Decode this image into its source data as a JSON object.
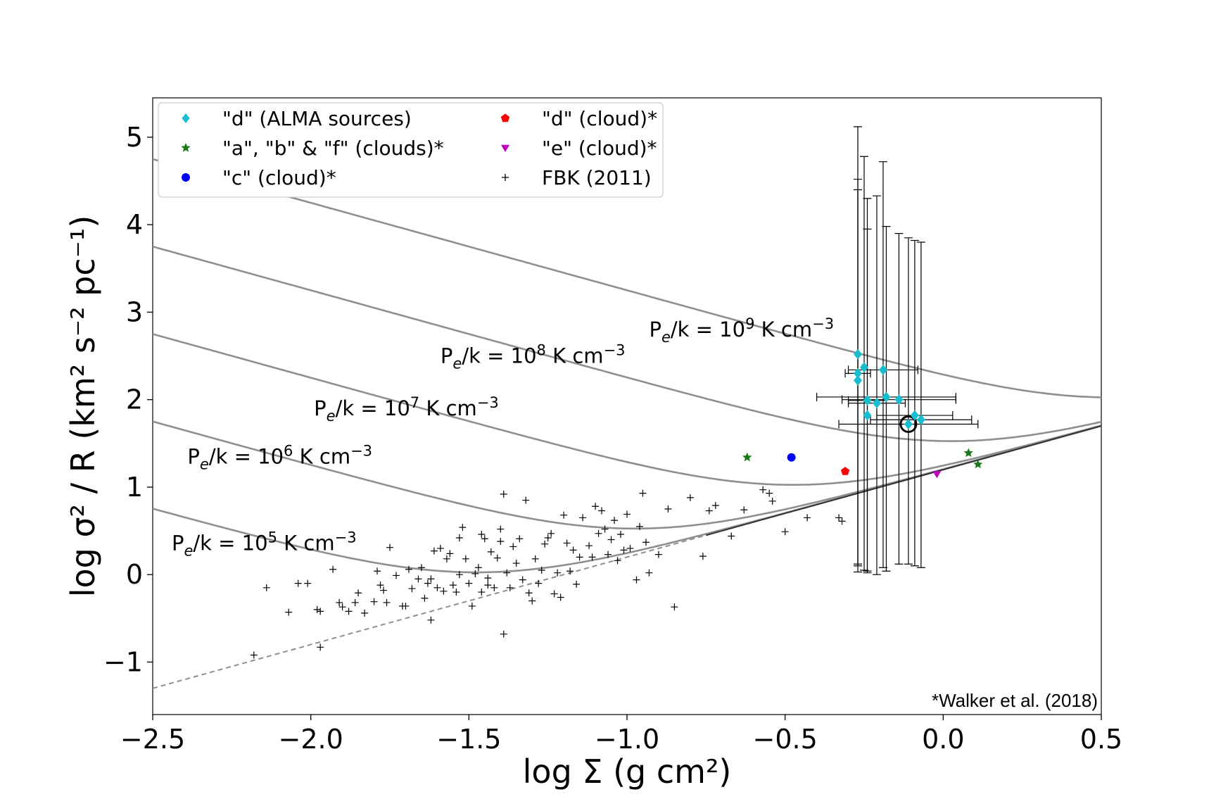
{
  "chart_data": {
    "type": "scatter",
    "xlabel": "log Σ (g cm²)",
    "ylabel": "log σ² / R (km² s⁻² pc⁻¹)",
    "xlim": [
      -2.5,
      0.5
    ],
    "ylim": [
      -1.6,
      5.45
    ],
    "xticks": [
      -2.5,
      -2.0,
      -1.5,
      -1.0,
      -0.5,
      0.0,
      0.5
    ],
    "yticks": [
      -1,
      0,
      1,
      2,
      3,
      4,
      5
    ],
    "xtick_labels": [
      "−2.5",
      "−2.0",
      "−1.5",
      "−1.0",
      "−0.5",
      "0.0",
      "0.5"
    ],
    "ytick_labels": [
      "−1",
      "0",
      "1",
      "2",
      "3",
      "4",
      "5"
    ],
    "annotation": "*Walker et al. (2018)",
    "legend": [
      {
        "label": "\"d\" (ALMA sources)",
        "marker": "diamond",
        "color": "#17becf"
      },
      {
        "label": "\"a\", \"b\" & \"f\" (clouds)*",
        "marker": "star",
        "color": "#1a7a1a"
      },
      {
        "label": "\"c\" (cloud)*",
        "marker": "circle",
        "color": "#0000ff"
      },
      {
        "label": "\"d\" (cloud)*",
        "marker": "pentagon",
        "color": "#ff0000"
      },
      {
        "label": "\"e\" (cloud)*",
        "marker": "triangle-down",
        "color": "#bf00bf"
      },
      {
        "label": "FBK (2011)",
        "marker": "plus",
        "color": "#000000"
      }
    ],
    "pressure_curves": [
      {
        "label_base": "P",
        "label_sub": "e",
        "label_mid": "/k = 10",
        "label_exp": "5",
        "label_unit": " K cm",
        "label_unit_exp": "−3",
        "log_pk": 5,
        "label_x": -2.44,
        "label_y": 0.28
      },
      {
        "label_base": "P",
        "label_sub": "e",
        "label_mid": "/k = 10",
        "label_exp": "6",
        "label_unit": " K cm",
        "label_unit_exp": "−3",
        "log_pk": 6,
        "label_x": -2.39,
        "label_y": 1.27
      },
      {
        "label_base": "P",
        "label_sub": "e",
        "label_mid": "/k = 10",
        "label_exp": "7",
        "label_unit": " K cm",
        "label_unit_exp": "−3",
        "log_pk": 7,
        "label_x": -1.99,
        "label_y": 1.82
      },
      {
        "label_base": "P",
        "label_sub": "e",
        "label_mid": "/k = 10",
        "label_exp": "8",
        "label_unit": " K cm",
        "label_unit_exp": "−3",
        "log_pk": 8,
        "label_x": -1.59,
        "label_y": 2.42
      },
      {
        "label_base": "P",
        "label_sub": "e",
        "label_mid": "/k = 10",
        "label_exp": "9",
        "label_unit": " K cm",
        "label_unit_exp": "−3",
        "log_pk": 9,
        "label_x": -0.93,
        "label_y": 2.72
      }
    ],
    "lines": {
      "gravity_line": {
        "x0": -2.5,
        "y0": -1.3,
        "x1": 0.5,
        "y1": 1.7
      },
      "gravity_line_solid_from_x": -0.75
    },
    "alma_sources": [
      {
        "x": -0.27,
        "y": 2.52,
        "xerr": 0.0,
        "ylo": 0.12,
        "yhi": 5.12
      },
      {
        "x": -0.25,
        "y": 2.37,
        "xerr": 0.0,
        "ylo": 0.05,
        "yhi": 4.78
      },
      {
        "x": -0.27,
        "y": 2.3,
        "xerr": 0.04,
        "ylo": 0.1,
        "yhi": 4.52
      },
      {
        "x": -0.27,
        "y": 2.22,
        "xerr": 0.0,
        "ylo": 0.03,
        "yhi": 4.4
      },
      {
        "x": -0.19,
        "y": 2.34,
        "xerr": 0.11,
        "ylo": 0.08,
        "yhi": 4.72
      },
      {
        "x": -0.24,
        "y": 1.99,
        "xerr": 0.06,
        "ylo": 0.04,
        "yhi": 4.3
      },
      {
        "x": -0.21,
        "y": 1.96,
        "xerr": 0.09,
        "ylo": 0.0,
        "yhi": 4.33
      },
      {
        "x": -0.18,
        "y": 2.03,
        "xerr": 0.22,
        "ylo": 0.04,
        "yhi": 3.98
      },
      {
        "x": -0.14,
        "y": 2.0,
        "xerr": 0.18,
        "ylo": 0.12,
        "yhi": 3.9
      },
      {
        "x": -0.24,
        "y": 1.82,
        "xerr": 0.0,
        "ylo": 0.02,
        "yhi": 3.95
      },
      {
        "x": -0.09,
        "y": 1.82,
        "xerr": 0.12,
        "ylo": 0.1,
        "yhi": 3.82
      },
      {
        "x": -0.07,
        "y": 1.77,
        "xerr": 0.16,
        "ylo": 0.08,
        "yhi": 3.8
      },
      {
        "x": -0.11,
        "y": 1.72,
        "xerr": 0.22,
        "ylo": 0.12,
        "yhi": 3.85
      }
    ],
    "highlighted_source": {
      "x": -0.11,
      "y": 1.72
    },
    "clouds_abf": [
      [
        -0.62,
        1.34
      ],
      [
        0.08,
        1.39
      ],
      [
        0.11,
        1.26
      ]
    ],
    "cloud_c": [
      [
        -0.48,
        1.34
      ]
    ],
    "cloud_d": [
      [
        -0.31,
        1.18
      ]
    ],
    "cloud_e": [
      [
        -0.02,
        1.15
      ]
    ],
    "fbk_2011": [
      [
        -2.18,
        -0.92
      ],
      [
        -2.14,
        -0.15
      ],
      [
        -2.07,
        -0.43
      ],
      [
        -2.04,
        -0.1
      ],
      [
        -2.01,
        -0.1
      ],
      [
        -1.98,
        -0.4
      ],
      [
        -1.97,
        -0.42
      ],
      [
        -1.97,
        -0.83
      ],
      [
        -1.93,
        0.06
      ],
      [
        -1.91,
        -0.32
      ],
      [
        -1.9,
        -0.37
      ],
      [
        -1.88,
        -0.42
      ],
      [
        -1.86,
        -0.32
      ],
      [
        -1.85,
        -0.21
      ],
      [
        -1.83,
        -0.44
      ],
      [
        -1.8,
        -0.31
      ],
      [
        -1.79,
        0.04
      ],
      [
        -1.78,
        -0.12
      ],
      [
        -1.77,
        -0.18
      ],
      [
        -1.76,
        -0.32
      ],
      [
        -1.75,
        0.31
      ],
      [
        -1.73,
        -0.01
      ],
      [
        -1.71,
        -0.36
      ],
      [
        -1.7,
        -0.36
      ],
      [
        -1.69,
        0.06
      ],
      [
        -1.68,
        -0.16
      ],
      [
        -1.66,
        -0.05
      ],
      [
        -1.65,
        0.08
      ],
      [
        -1.64,
        -0.27
      ],
      [
        -1.63,
        -0.1
      ],
      [
        -1.62,
        -0.52
      ],
      [
        -1.61,
        0.27
      ],
      [
        -1.6,
        -0.15
      ],
      [
        -1.59,
        0.3
      ],
      [
        -1.58,
        -0.19
      ],
      [
        -1.57,
        0.18
      ],
      [
        -1.56,
        0.24
      ],
      [
        -1.55,
        -0.12
      ],
      [
        -1.54,
        -0.2
      ],
      [
        -1.53,
        0.0
      ],
      [
        -1.52,
        0.54
      ],
      [
        -1.51,
        0.18
      ],
      [
        -1.5,
        -0.1
      ],
      [
        -1.49,
        -0.36
      ],
      [
        -1.48,
        0.01
      ],
      [
        -1.47,
        0.08
      ],
      [
        -1.46,
        0.46
      ],
      [
        -1.46,
        -0.2
      ],
      [
        -1.45,
        0.41
      ],
      [
        -1.44,
        -0.04
      ],
      [
        -1.43,
        0.26
      ],
      [
        -1.42,
        -0.15
      ],
      [
        -1.41,
        0.19
      ],
      [
        -1.4,
        0.38
      ],
      [
        -1.4,
        0.52
      ],
      [
        -1.39,
        -0.68
      ],
      [
        -1.38,
        0.02
      ],
      [
        -1.37,
        -0.15
      ],
      [
        -1.36,
        0.32
      ],
      [
        -1.35,
        0.13
      ],
      [
        -1.34,
        0.41
      ],
      [
        -1.33,
        -0.06
      ],
      [
        -1.32,
        0.85
      ],
      [
        -1.31,
        -0.21
      ],
      [
        -1.3,
        -0.3
      ],
      [
        -1.29,
        0.18
      ],
      [
        -1.28,
        -0.1
      ],
      [
        -1.27,
        0.05
      ],
      [
        -1.26,
        0.35
      ],
      [
        -1.25,
        0.42
      ],
      [
        -1.24,
        0.47
      ],
      [
        -1.23,
        -0.22
      ],
      [
        -1.22,
        0.02
      ],
      [
        -1.21,
        -0.26
      ],
      [
        -1.2,
        0.68
      ],
      [
        -1.19,
        0.36
      ],
      [
        -1.18,
        0.04
      ],
      [
        -1.17,
        0.28
      ],
      [
        -1.16,
        -0.11
      ],
      [
        -1.14,
        0.65
      ],
      [
        -1.12,
        0.33
      ],
      [
        -1.11,
        0.2
      ],
      [
        -1.1,
        0.78
      ],
      [
        -1.09,
        0.47
      ],
      [
        -1.08,
        0.73
      ],
      [
        -1.07,
        0.52
      ],
      [
        -1.06,
        0.23
      ],
      [
        -1.05,
        0.4
      ],
      [
        -1.04,
        0.62
      ],
      [
        -1.03,
        0.16
      ],
      [
        -1.02,
        0.46
      ],
      [
        -1.01,
        0.28
      ],
      [
        -1.0,
        0.69
      ],
      [
        -0.99,
        0.3
      ],
      [
        -0.97,
        -0.06
      ],
      [
        -0.96,
        0.55
      ],
      [
        -0.95,
        0.93
      ],
      [
        -0.94,
        0.37
      ],
      [
        -0.93,
        0.02
      ],
      [
        -0.9,
        0.23
      ],
      [
        -0.87,
        0.75
      ],
      [
        -0.85,
        -0.37
      ],
      [
        -0.8,
        0.88
      ],
      [
        -0.76,
        0.21
      ],
      [
        -0.74,
        0.73
      ],
      [
        -0.72,
        0.79
      ],
      [
        -0.67,
        0.44
      ],
      [
        -0.63,
        0.74
      ],
      [
        -0.57,
        0.97
      ],
      [
        -0.55,
        0.93
      ],
      [
        -0.54,
        0.84
      ],
      [
        -0.5,
        0.49
      ],
      [
        -0.43,
        0.65
      ],
      [
        -0.33,
        0.65
      ],
      [
        -0.32,
        0.61
      ],
      [
        -1.39,
        0.92
      ],
      [
        -1.62,
        -0.05
      ],
      [
        -1.53,
        0.42
      ],
      [
        -1.44,
        -0.12
      ],
      [
        -1.15,
        0.2
      ]
    ]
  }
}
